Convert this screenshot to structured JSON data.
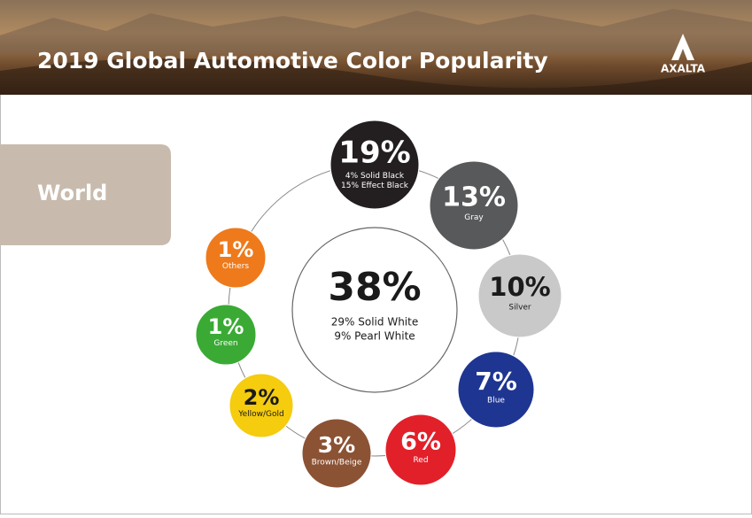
{
  "header": {
    "title": "2019 Global Automotive Color Popularity",
    "logo": "AXALTA"
  },
  "region": "World",
  "center": {
    "percent": "38%",
    "lines": [
      "29% Solid White",
      "9% Pearl White"
    ]
  },
  "colors": [
    {
      "percent": "19%",
      "lines": [
        "4% Solid Black",
        "15% Effect Black"
      ]
    },
    {
      "percent": "13%",
      "lines": [
        "Gray"
      ]
    },
    {
      "percent": "10%",
      "lines": [
        "Silver"
      ]
    },
    {
      "percent": "7%",
      "lines": [
        "Blue"
      ]
    },
    {
      "percent": "6%",
      "lines": [
        "Red"
      ]
    },
    {
      "percent": "3%",
      "lines": [
        "Brown/Beige"
      ]
    },
    {
      "percent": "2%",
      "lines": [
        "Yellow/Gold"
      ]
    },
    {
      "percent": "1%",
      "lines": [
        "Green"
      ]
    },
    {
      "percent": "1%",
      "lines": [
        "Others"
      ]
    }
  ]
}
